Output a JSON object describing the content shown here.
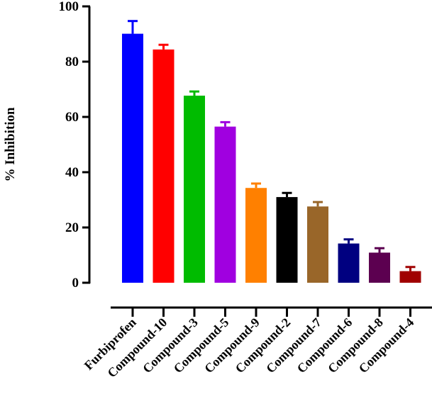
{
  "chart_data": {
    "type": "bar",
    "title": "",
    "xlabel": "",
    "ylabel": "% Inhibition",
    "ylim": [
      0,
      100
    ],
    "yticks": [
      0,
      20,
      40,
      60,
      80,
      100
    ],
    "grid": false,
    "categories": [
      "Furbiprofen",
      "Compound-10",
      "Compound-3",
      "Compound-5",
      "Compound-9",
      "Compound-2",
      "Compound-7",
      "Compound-6",
      "Compound-8",
      "Compound-4"
    ],
    "values": [
      90.1,
      84.4,
      67.7,
      56.5,
      34.3,
      31.0,
      27.6,
      14.2,
      10.9,
      4.2
    ],
    "errors": [
      4.6,
      1.7,
      1.5,
      1.6,
      1.6,
      1.5,
      1.6,
      1.5,
      1.6,
      1.5
    ],
    "colors": [
      "#0000ff",
      "#ff0000",
      "#00bb00",
      "#a000e0",
      "#ff8000",
      "#000000",
      "#996629",
      "#000080",
      "#5c0050",
      "#a00000"
    ]
  }
}
